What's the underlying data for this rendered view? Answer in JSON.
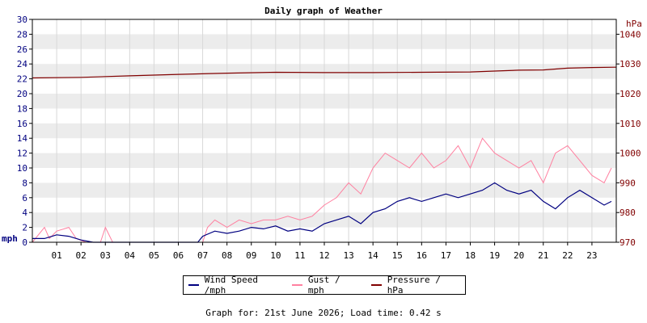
{
  "chart_data": {
    "type": "line",
    "title": "Daily graph of Weather",
    "y_left": {
      "label": "mph",
      "min": 0,
      "max": 30,
      "step": 2
    },
    "y_right": {
      "label": "hPa",
      "min": 970,
      "max": 1045,
      "ticks": [
        970,
        980,
        990,
        1000,
        1010,
        1020,
        1030,
        1040
      ]
    },
    "x_labels": [
      "01",
      "02",
      "03",
      "04",
      "05",
      "06",
      "07",
      "08",
      "09",
      "10",
      "11",
      "12",
      "13",
      "14",
      "15",
      "16",
      "17",
      "18",
      "19",
      "20",
      "21",
      "22",
      "23"
    ],
    "x_range_hours": [
      0,
      24
    ],
    "grid": "horizontal bands",
    "legend_placement": "bottom",
    "series": [
      {
        "name": "Wind Speed /mph",
        "color": "#000080",
        "axis": "left",
        "x": [
          0,
          0.5,
          1,
          1.5,
          2,
          2.5,
          3,
          4,
          5,
          6,
          6.8,
          7,
          7.5,
          8,
          8.5,
          9,
          9.5,
          10,
          10.5,
          11,
          11.5,
          12,
          12.5,
          13,
          13.5,
          14,
          14.5,
          15,
          15.5,
          16,
          16.5,
          17,
          17.5,
          18,
          18.5,
          19,
          19.5,
          20,
          20.5,
          21,
          21.5,
          22,
          22.5,
          23,
          23.5,
          23.8
        ],
        "values": [
          0.5,
          0.5,
          1.0,
          0.8,
          0.3,
          0,
          0,
          0,
          0,
          0,
          0,
          0.8,
          1.5,
          1.2,
          1.5,
          2.0,
          1.8,
          2.2,
          1.5,
          1.8,
          1.5,
          2.5,
          3.0,
          3.5,
          2.5,
          4.0,
          4.5,
          5.5,
          6.0,
          5.5,
          6.0,
          6.5,
          6.0,
          6.5,
          7.0,
          8.0,
          7.0,
          6.5,
          7.0,
          5.5,
          4.5,
          6.0,
          7.0,
          6.0,
          5.0,
          5.5
        ]
      },
      {
        "name": "Gust / mph",
        "color": "#ff80a0",
        "axis": "left",
        "x": [
          0,
          0.5,
          0.7,
          1,
          1.5,
          1.8,
          2.2,
          2.8,
          3,
          3.3,
          4,
          5,
          6,
          7,
          7.2,
          7.5,
          8,
          8.5,
          9,
          9.5,
          10,
          10.5,
          11,
          11.5,
          12,
          12.5,
          13,
          13.5,
          14,
          14.5,
          15,
          15.5,
          16,
          16.5,
          17,
          17.5,
          18,
          18.5,
          19,
          19.5,
          20,
          20.5,
          21,
          21.5,
          22,
          22.5,
          23,
          23.5,
          23.8
        ],
        "values": [
          0,
          2.0,
          0.5,
          1.5,
          2.0,
          0.5,
          0,
          0,
          2.0,
          0,
          0,
          0,
          0,
          0,
          2.0,
          3.0,
          2.0,
          3.0,
          2.5,
          3.0,
          3.0,
          3.5,
          3.0,
          3.5,
          5.0,
          6.0,
          8.0,
          6.5,
          10.0,
          12.0,
          11.0,
          10.0,
          12.0,
          10.0,
          11.0,
          13.0,
          10.0,
          14.0,
          12.0,
          11.0,
          10.0,
          11.0,
          8.0,
          12.0,
          13.0,
          11.0,
          9.0,
          8.0,
          10.0
        ]
      },
      {
        "name": "Pressure / hPa",
        "color": "#800000",
        "axis": "right",
        "x": [
          0,
          2,
          4,
          6,
          8,
          10,
          12,
          14,
          16,
          18,
          19,
          20,
          21,
          22,
          23,
          24
        ],
        "values": [
          1025.3,
          1025.5,
          1026.0,
          1026.5,
          1026.9,
          1027.2,
          1027.1,
          1027.1,
          1027.2,
          1027.3,
          1027.6,
          1027.9,
          1028.0,
          1028.6,
          1028.8,
          1028.9
        ]
      }
    ]
  },
  "footer": {
    "text": "Graph for: 21st June 2026; Load time: 0.42 s"
  }
}
